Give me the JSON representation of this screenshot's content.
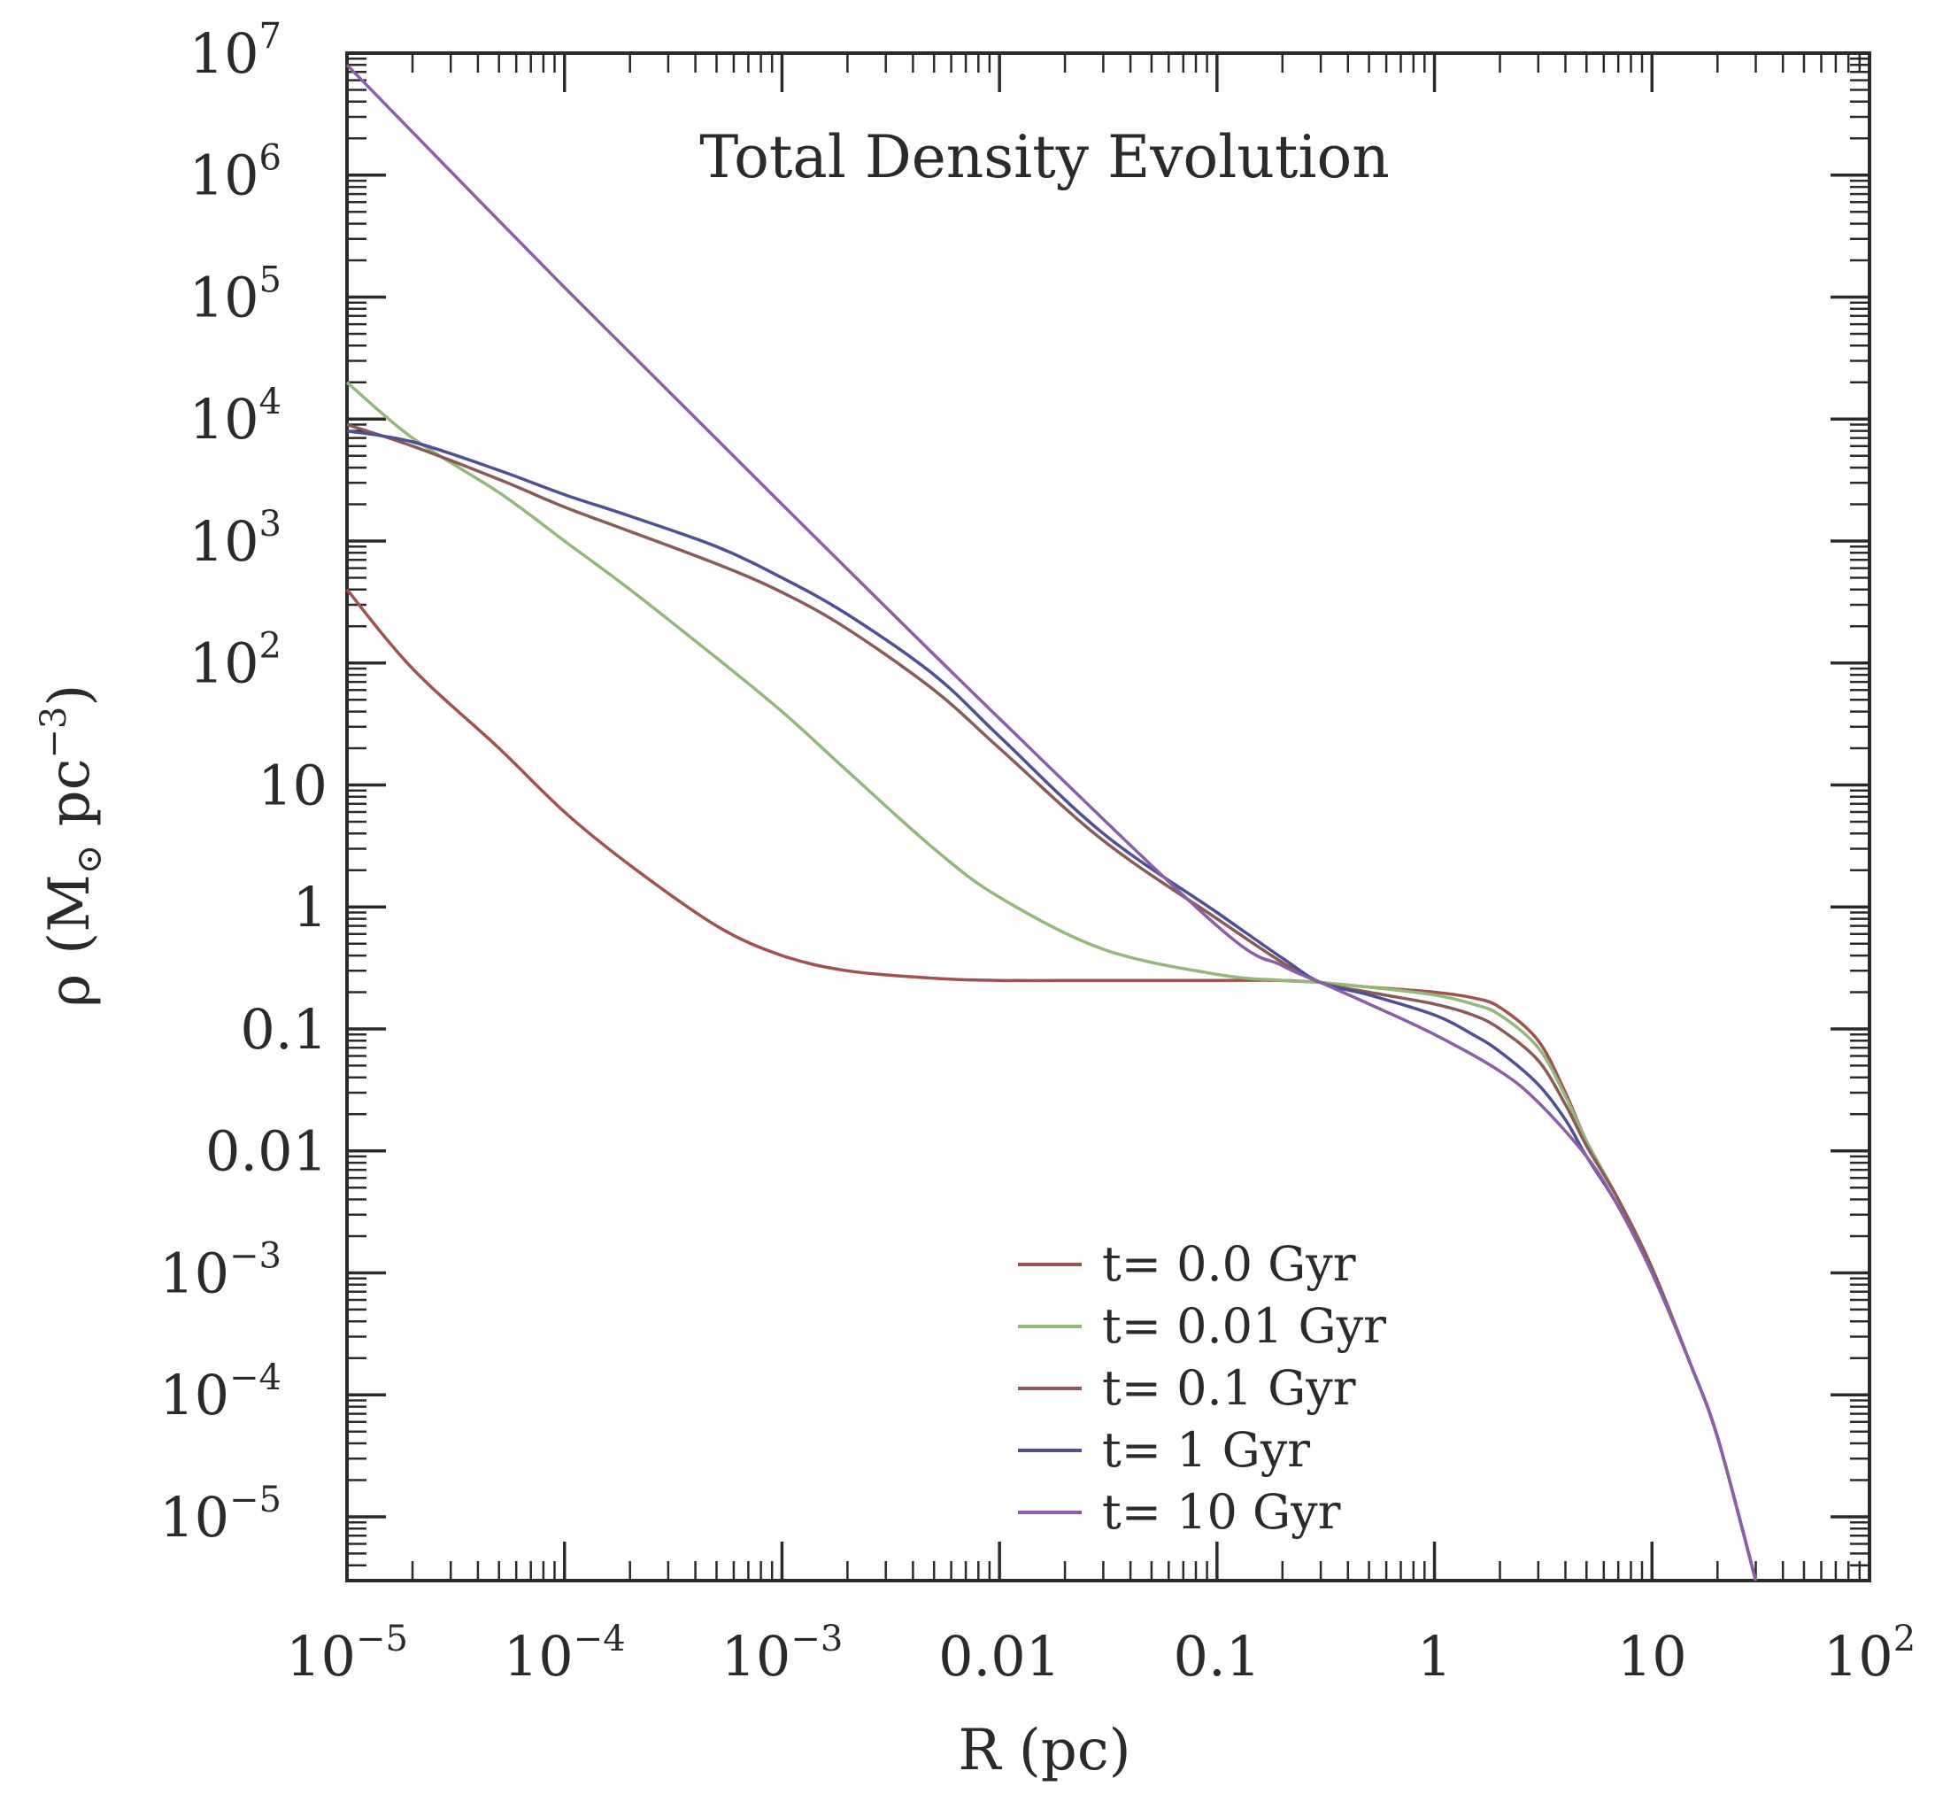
{
  "chart_data": {
    "type": "line",
    "title": "Total Density Evolution",
    "xlabel": "R (pc)",
    "ylabel": {
      "symbol": "ρ",
      "open": "(M",
      "sub": "⊙",
      "mid": " pc",
      "sup": "−3",
      "close": ")"
    },
    "x_scale": "log",
    "y_scale": "log",
    "xlim": [
      1e-05,
      100
    ],
    "ylim": [
      3e-06,
      10000000
    ],
    "x_ticks": [
      {
        "value": 1e-05,
        "base": "10",
        "exp": "−5"
      },
      {
        "value": 0.0001,
        "base": "10",
        "exp": "−4"
      },
      {
        "value": 0.001,
        "base": "10",
        "exp": "−3"
      },
      {
        "value": 0.01,
        "base": "0.01",
        "exp": ""
      },
      {
        "value": 0.1,
        "base": "0.1",
        "exp": ""
      },
      {
        "value": 1,
        "base": "1",
        "exp": ""
      },
      {
        "value": 10,
        "base": "10",
        "exp": ""
      },
      {
        "value": 100,
        "base": "10",
        "exp": "2"
      }
    ],
    "y_ticks": [
      {
        "value": 10000000,
        "base": "10",
        "exp": "7"
      },
      {
        "value": 1000000,
        "base": "10",
        "exp": "6"
      },
      {
        "value": 100000,
        "base": "10",
        "exp": "5"
      },
      {
        "value": 10000,
        "base": "10",
        "exp": "4"
      },
      {
        "value": 1000,
        "base": "10",
        "exp": "3"
      },
      {
        "value": 100,
        "base": "10",
        "exp": "2"
      },
      {
        "value": 10,
        "base": "10",
        "exp": ""
      },
      {
        "value": 1,
        "base": "1",
        "exp": ""
      },
      {
        "value": 0.1,
        "base": "0.1",
        "exp": ""
      },
      {
        "value": 0.01,
        "base": "0.01",
        "exp": ""
      },
      {
        "value": 0.001,
        "base": "10",
        "exp": "−3"
      },
      {
        "value": 0.0001,
        "base": "10",
        "exp": "−4"
      },
      {
        "value": 1e-05,
        "base": "10",
        "exp": "−5"
      }
    ],
    "grid": false,
    "legend_position": "bottom-right",
    "series": [
      {
        "name": "t= 0.0 Gyr",
        "color": "#a0524f",
        "points": [
          [
            1e-05,
            400
          ],
          [
            2e-05,
            90
          ],
          [
            5e-05,
            20
          ],
          [
            0.0001,
            6
          ],
          [
            0.0002,
            2.2
          ],
          [
            0.0005,
            0.7
          ],
          [
            0.001,
            0.4
          ],
          [
            0.002,
            0.3
          ],
          [
            0.005,
            0.26
          ],
          [
            0.01,
            0.25
          ],
          [
            0.03,
            0.25
          ],
          [
            0.1,
            0.25
          ],
          [
            0.2,
            0.25
          ],
          [
            0.3,
            0.24
          ],
          [
            0.5,
            0.22
          ],
          [
            1,
            0.2
          ],
          [
            1.5,
            0.18
          ],
          [
            2,
            0.15
          ],
          [
            3,
            0.08
          ],
          [
            4,
            0.03
          ],
          [
            5,
            0.012
          ],
          [
            7,
            0.004
          ],
          [
            10,
            0.0011
          ],
          [
            15,
            0.00018
          ],
          [
            20,
            4.5e-05
          ],
          [
            30,
            3e-06
          ]
        ]
      },
      {
        "name": "t= 0.01 Gyr",
        "color": "#93b87a",
        "points": [
          [
            1e-05,
            20000
          ],
          [
            2e-05,
            7000
          ],
          [
            5e-05,
            2500
          ],
          [
            0.0001,
            1000
          ],
          [
            0.0002,
            400
          ],
          [
            0.0005,
            110
          ],
          [
            0.001,
            40
          ],
          [
            0.002,
            13
          ],
          [
            0.005,
            3
          ],
          [
            0.01,
            1.2
          ],
          [
            0.03,
            0.45
          ],
          [
            0.1,
            0.28
          ],
          [
            0.2,
            0.25
          ],
          [
            0.3,
            0.24
          ],
          [
            0.5,
            0.22
          ],
          [
            1,
            0.19
          ],
          [
            1.5,
            0.16
          ],
          [
            2,
            0.13
          ],
          [
            3,
            0.07
          ],
          [
            4,
            0.028
          ],
          [
            5,
            0.012
          ],
          [
            7,
            0.004
          ],
          [
            10,
            0.0011
          ],
          [
            15,
            0.00018
          ],
          [
            20,
            4.5e-05
          ],
          [
            30,
            3e-06
          ]
        ]
      },
      {
        "name": "t= 0.1 Gyr",
        "color": "#8a5a58",
        "points": [
          [
            1e-05,
            9000
          ],
          [
            2e-05,
            6000
          ],
          [
            5e-05,
            3200
          ],
          [
            0.0001,
            1900
          ],
          [
            0.0002,
            1200
          ],
          [
            0.0005,
            650
          ],
          [
            0.001,
            380
          ],
          [
            0.002,
            190
          ],
          [
            0.005,
            60
          ],
          [
            0.01,
            20
          ],
          [
            0.03,
            3.5
          ],
          [
            0.1,
            0.8
          ],
          [
            0.2,
            0.35
          ],
          [
            0.3,
            0.24
          ],
          [
            0.5,
            0.2
          ],
          [
            1,
            0.16
          ],
          [
            1.5,
            0.13
          ],
          [
            2,
            0.1
          ],
          [
            3,
            0.055
          ],
          [
            4,
            0.024
          ],
          [
            5,
            0.011
          ],
          [
            7,
            0.004
          ],
          [
            10,
            0.0011
          ],
          [
            15,
            0.00018
          ],
          [
            20,
            4.5e-05
          ],
          [
            30,
            3e-06
          ]
        ]
      },
      {
        "name": "t= 1 Gyr",
        "color": "#4f4f96",
        "points": [
          [
            1e-05,
            8000
          ],
          [
            2e-05,
            6500
          ],
          [
            5e-05,
            3800
          ],
          [
            0.0001,
            2400
          ],
          [
            0.0002,
            1600
          ],
          [
            0.0005,
            900
          ],
          [
            0.001,
            500
          ],
          [
            0.002,
            250
          ],
          [
            0.005,
            80
          ],
          [
            0.01,
            25
          ],
          [
            0.03,
            4
          ],
          [
            0.1,
            0.9
          ],
          [
            0.2,
            0.38
          ],
          [
            0.3,
            0.24
          ],
          [
            0.5,
            0.19
          ],
          [
            1,
            0.13
          ],
          [
            1.5,
            0.09
          ],
          [
            2,
            0.065
          ],
          [
            3,
            0.035
          ],
          [
            4,
            0.018
          ],
          [
            5,
            0.009
          ],
          [
            7,
            0.0035
          ],
          [
            10,
            0.001
          ],
          [
            15,
            0.00018
          ],
          [
            20,
            4.5e-05
          ],
          [
            30,
            3e-06
          ]
        ]
      },
      {
        "name": "t= 10 Gyr",
        "color": "#8a5fa8",
        "points": [
          [
            1e-05,
            8000000
          ],
          [
            0.0001,
            120000
          ],
          [
            0.001,
            2000
          ],
          [
            0.01,
            35
          ],
          [
            0.1,
            0.7
          ],
          [
            0.2,
            0.33
          ],
          [
            0.3,
            0.24
          ],
          [
            0.5,
            0.16
          ],
          [
            1,
            0.09
          ],
          [
            2,
            0.045
          ],
          [
            3,
            0.025
          ],
          [
            5,
            0.009
          ],
          [
            7,
            0.0035
          ],
          [
            10,
            0.001
          ],
          [
            15,
            0.00018
          ],
          [
            20,
            4.5e-05
          ],
          [
            30,
            3e-06
          ]
        ]
      }
    ]
  }
}
